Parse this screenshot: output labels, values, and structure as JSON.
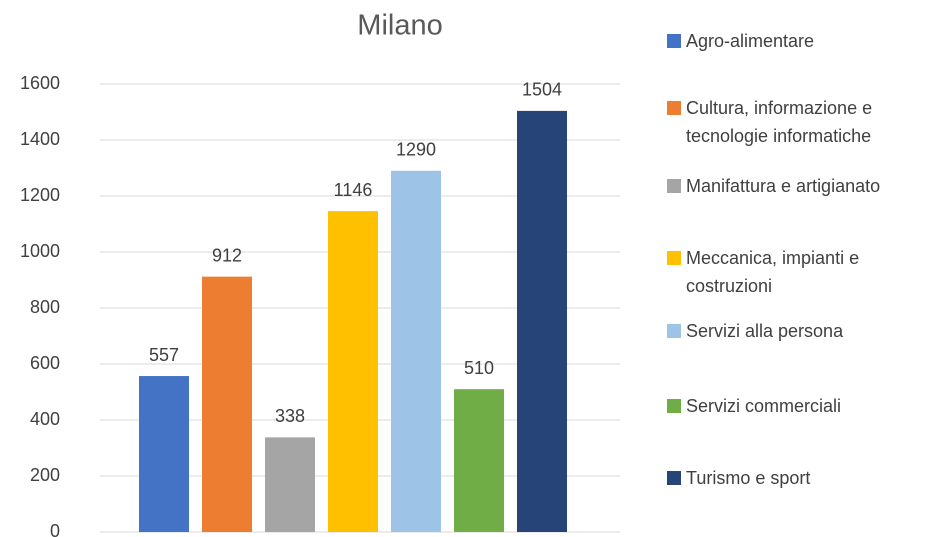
{
  "chart_data": {
    "type": "bar",
    "title": "Milano",
    "series": [
      {
        "name": "Agro-alimentare",
        "color": "#4472c4",
        "values": [
          557
        ]
      },
      {
        "name": "Cultura, informazione e tecnologie informatiche",
        "color": "#ed7d31",
        "values": [
          912
        ]
      },
      {
        "name": "Manifattura e artigianato",
        "color": "#a5a5a5",
        "values": [
          338
        ]
      },
      {
        "name": "Meccanica, impianti e costruzioni",
        "color": "#ffc000",
        "values": [
          1146
        ]
      },
      {
        "name": "Servizi alla persona",
        "color": "#9dc3e6",
        "values": [
          1290
        ]
      },
      {
        "name": "Servizi commerciali",
        "color": "#70ad47",
        "values": [
          510
        ]
      },
      {
        "name": "Turismo e sport",
        "color": "#264478",
        "values": [
          1504
        ]
      }
    ],
    "ylim": [
      0,
      1600
    ],
    "yticks": [
      0,
      200,
      400,
      600,
      800,
      1000,
      1200,
      1400,
      1600
    ],
    "grid": true,
    "legend": "right"
  }
}
